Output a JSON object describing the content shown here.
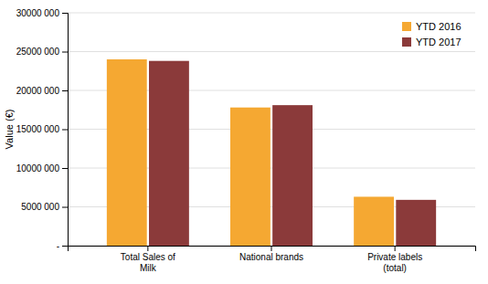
{
  "chart_data": {
    "type": "bar",
    "categories": [
      "Total Sales of\nMilk",
      "National brands",
      "Private labels\n(total)"
    ],
    "series": [
      {
        "name": "YTD 2016",
        "color": "#F5A832",
        "values": [
          24000000,
          17800000,
          6300000
        ]
      },
      {
        "name": "YTD 2017",
        "color": "#8B3A3A",
        "values": [
          23800000,
          18100000,
          5900000
        ]
      }
    ],
    "ylabel": "Value (€)",
    "ylim": [
      0,
      30000000
    ],
    "yticks": [
      {
        "value": 0,
        "label": "-"
      },
      {
        "value": 5000000,
        "label": "5000 000"
      },
      {
        "value": 10000000,
        "label": "10000 000"
      },
      {
        "value": 15000000,
        "label": "15000 000"
      },
      {
        "value": 20000000,
        "label": "20000 000"
      },
      {
        "value": 25000000,
        "label": "25000 000"
      },
      {
        "value": 30000000,
        "label": "30000 000"
      }
    ],
    "grid": true,
    "legend": "upper right"
  }
}
